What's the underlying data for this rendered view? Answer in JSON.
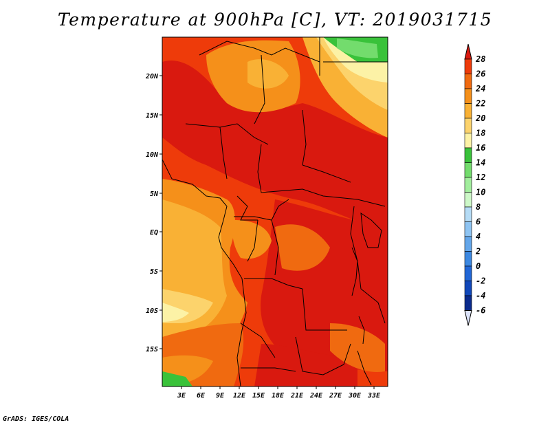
{
  "title": "Temperature at 900hPa [C], VT: 2019031715",
  "credit": "GrADS: IGES/COLA",
  "lat_ticks": [
    "20N",
    "15N",
    "10N",
    "5N",
    "EQ",
    "5S",
    "10S",
    "15S"
  ],
  "lon_ticks": [
    "3E",
    "6E",
    "9E",
    "12E",
    "15E",
    "18E",
    "21E",
    "24E",
    "27E",
    "30E",
    "33E"
  ],
  "colorbar": {
    "labels": [
      "28",
      "26",
      "24",
      "22",
      "20",
      "18",
      "16",
      "14",
      "12",
      "10",
      "8",
      "6",
      "4",
      "2",
      "0",
      "-2",
      "-4",
      "-6"
    ],
    "colors": [
      "#d9190f",
      "#ee3b0a",
      "#f06a10",
      "#f5901a",
      "#f9b135",
      "#fcd36c",
      "#fcf2a6",
      "#39c23a",
      "#73dc6d",
      "#a2ee9d",
      "#cdf8c8",
      "#b5dcf6",
      "#8ec4f2",
      "#63a6ea",
      "#3c88e1",
      "#2166d6",
      "#1047b9",
      "#0a2a8c",
      "#061660"
    ]
  }
}
